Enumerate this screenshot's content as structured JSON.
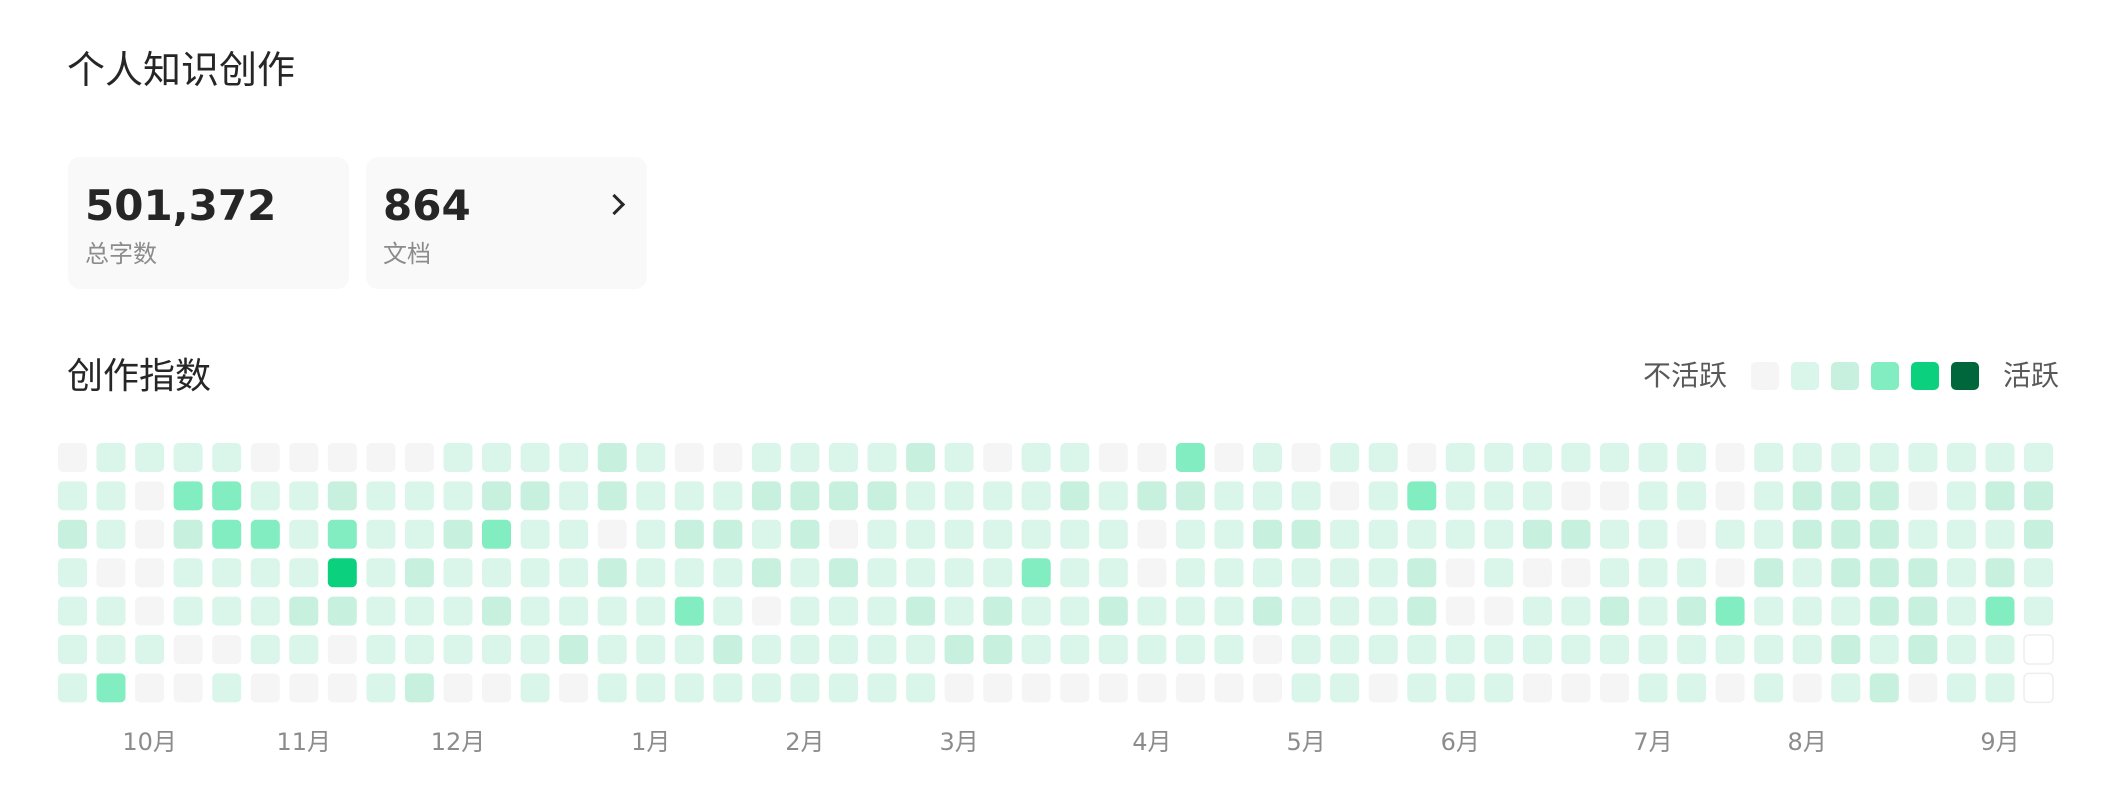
{
  "page_title": "个人知识创作",
  "stats": [
    {
      "value": "501,372",
      "label": "总字数"
    },
    {
      "value": "864",
      "label": "文档"
    }
  ],
  "stats_chevron_icon": "chevron-right-icon",
  "section_title": "创作指数",
  "legend": {
    "low_label": "不活跃",
    "high_label": "活跃"
  },
  "level_colors": [
    "#f5f5f5",
    "#daf6ea",
    "#c7f0df",
    "#82edc0",
    "#0bd07d",
    "#00663b"
  ],
  "chart_data": {
    "type": "heatmap",
    "title": "",
    "rows": 7,
    "columns": 52,
    "levels": [
      0,
      1,
      2,
      3,
      4,
      5
    ],
    "month_labels": [
      {
        "label": "10月",
        "column": 2
      },
      {
        "label": "11月",
        "column": 6
      },
      {
        "label": "12月",
        "column": 10
      },
      {
        "label": "1月",
        "column": 15
      },
      {
        "label": "2月",
        "column": 19
      },
      {
        "label": "3月",
        "column": 23
      },
      {
        "label": "4月",
        "column": 28
      },
      {
        "label": "5月",
        "column": 32
      },
      {
        "label": "6月",
        "column": 36
      },
      {
        "label": "7月",
        "column": 41
      },
      {
        "label": "8月",
        "column": 45
      },
      {
        "label": "9月",
        "column": 50
      }
    ],
    "matrix": [
      "0111100000111121001111210110030101101111111011111111",
      "1103311211122121112222111121221110131110011012220122",
      "2102331311231101221201111111011221111122110112221112",
      "1001111412111121112121111311011111120100111021222121",
      "1101112211121111310111212112111211120011212311122131",
      "1110011011111211121111122111111011111111111111212111",
      "1300100012001011111111100000000011011100011010120110"
    ],
    "empty_cells": [
      [
        5,
        51
      ],
      [
        6,
        51
      ]
    ]
  }
}
